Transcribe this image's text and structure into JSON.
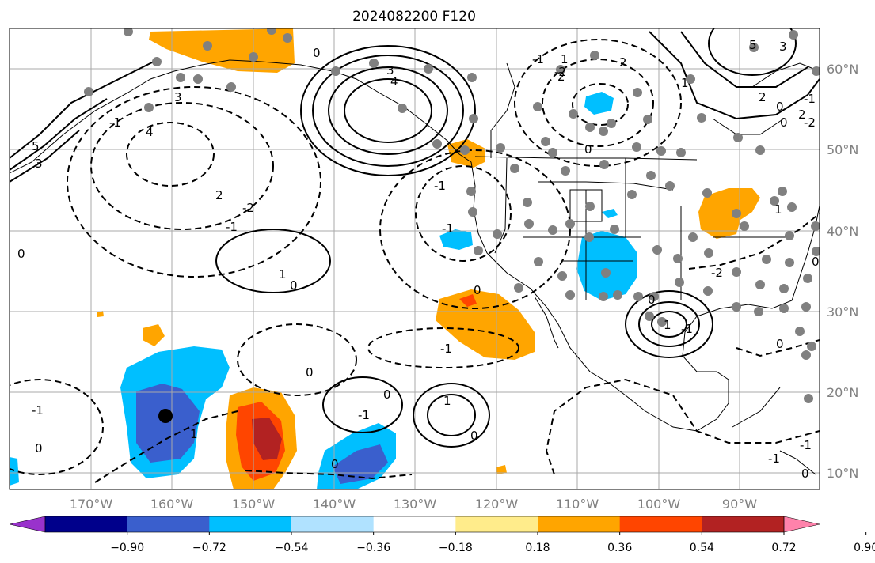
{
  "title": "2024082200 F120",
  "lat_ticks": [
    "60°N",
    "50°N",
    "40°N",
    "30°N",
    "20°N",
    "10°N"
  ],
  "lon_ticks": [
    "170°W",
    "160°W",
    "150°W",
    "140°W",
    "130°W",
    "120°W",
    "110°W",
    "100°W",
    "90°W"
  ],
  "colorbar": {
    "labels": [
      "−0.90",
      "−0.72",
      "−0.54",
      "−0.36",
      "−0.18",
      "0.18",
      "0.36",
      "0.54",
      "0.72",
      "0.90"
    ],
    "colors": [
      "#9932cc",
      "#00008b",
      "#3a5fcd",
      "#00bfff",
      "#b0e2ff",
      "#ffffff",
      "#ffec8b",
      "#ffa500",
      "#ff4500",
      "#b22222",
      "#ff82ab"
    ]
  },
  "contour_labels": [
    "3",
    "4",
    "4",
    "3",
    "5",
    "3",
    "2",
    "1",
    "0",
    "-1",
    "-2",
    "-1",
    "2",
    "0",
    "2",
    "1",
    "0",
    "0",
    "-1",
    "0",
    "-1",
    "1",
    "0",
    "0",
    "-1",
    "0",
    "0",
    "-1",
    "1",
    "0",
    "-2",
    "0",
    "-1",
    "1",
    "0",
    "-1",
    "-2",
    "-1",
    "0",
    "-1",
    "1",
    "0",
    "0",
    "-1",
    "-1",
    "-2",
    "5",
    "3",
    "2",
    "0",
    "1",
    "2"
  ],
  "marker_color": "#808080"
}
